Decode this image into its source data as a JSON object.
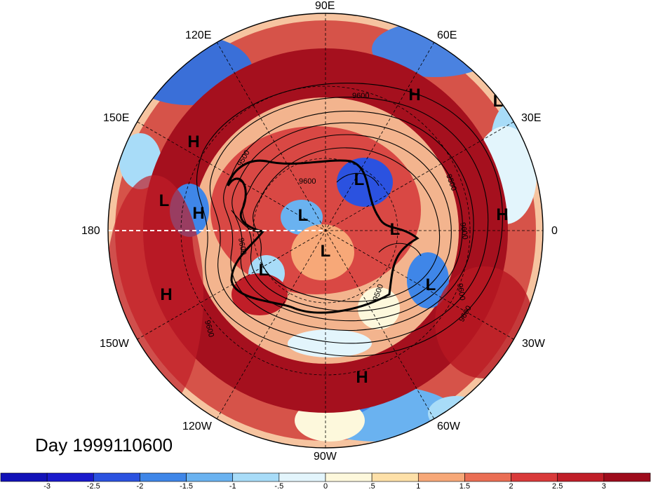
{
  "map": {
    "longitude_labels": [
      "90E",
      "60E",
      "30E",
      "0",
      "30W",
      "60W",
      "90W",
      "120W",
      "150W",
      "180",
      "150E",
      "120E"
    ],
    "date_label": "Day 1999110600",
    "contour_labels": [
      "9600",
      "9600",
      "9500",
      "9600",
      "9500",
      "9600",
      "9600",
      "9500",
      "9600",
      "9600"
    ],
    "pressure_centers": [
      "H",
      "L",
      "H",
      "L",
      "H",
      "L",
      "L",
      "L",
      "H",
      "L",
      "L",
      "L",
      "H",
      "H"
    ]
  },
  "colorbar": {
    "tick_labels": [
      "-3",
      "-2.5",
      "-2",
      "-1.5",
      "-1",
      "-.5",
      "0",
      ".5",
      "1",
      "1.5",
      "2",
      "2.5",
      "3"
    ],
    "colors": [
      "#1a1acc",
      "#2b52e0",
      "#3f86e8",
      "#6ab2f0",
      "#a8dcf8",
      "#e3f5fc",
      "#fdf8dc",
      "#fde0a8",
      "#f7a878",
      "#ea6e54",
      "#d93a3a",
      "#c01e28",
      "#9e0c1c"
    ]
  },
  "palette": {
    "ring_red": "#a5101e",
    "mid_red": "#d63c3c",
    "blue": "#3a6fd8",
    "contour": "#000000"
  }
}
